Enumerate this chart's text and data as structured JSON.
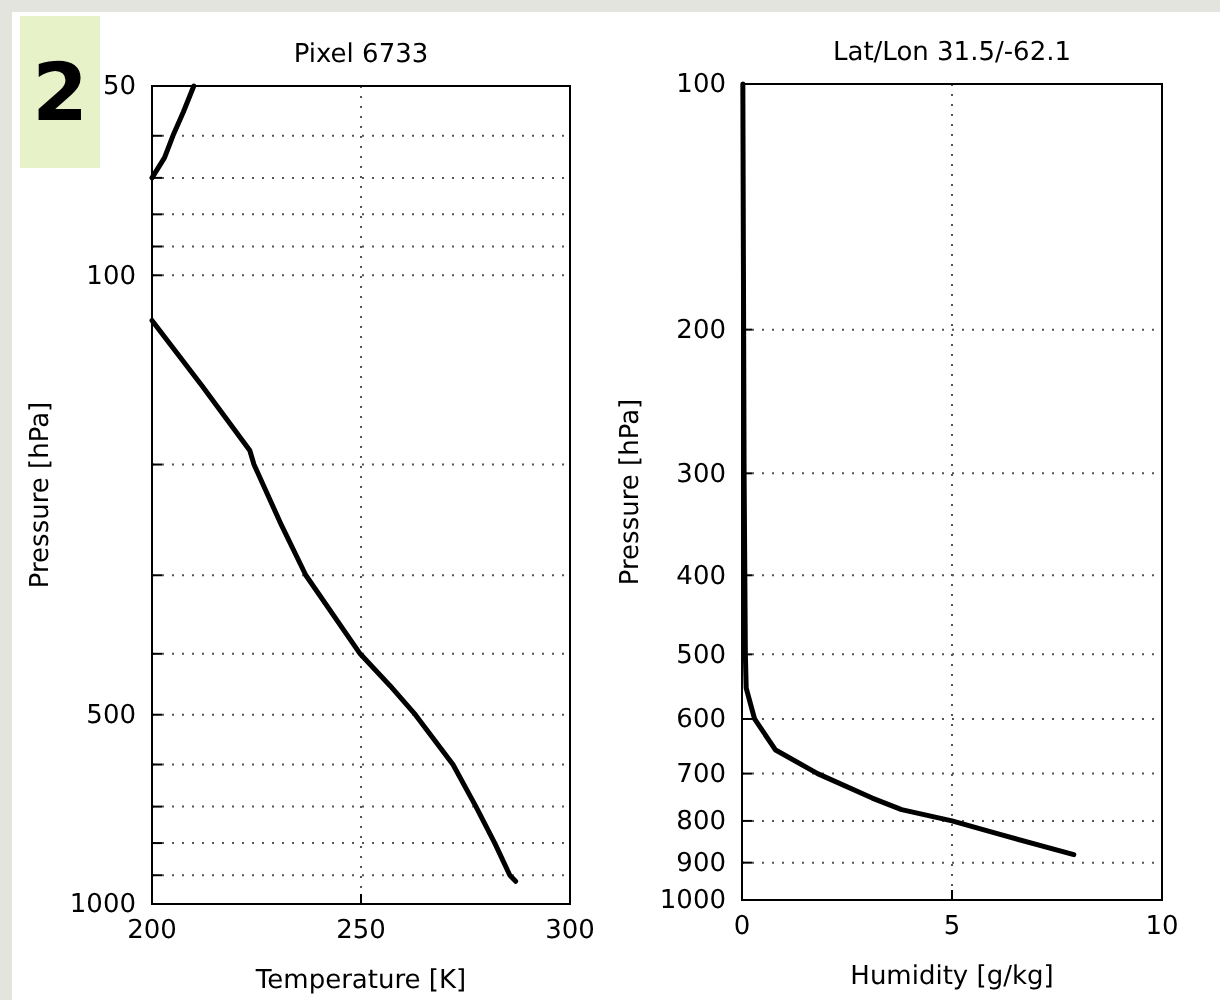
{
  "chart_data": [
    {
      "type": "line",
      "title": "Pixel 6733",
      "xlabel": "Temperature [K]",
      "ylabel": "Pressure [hPa]",
      "annotations": [
        "2"
      ],
      "series": [
        {
          "color": "#000000",
          "x": [
            210,
            207.5,
            205,
            203,
            200,
            null,
            200,
            212,
            223.4,
            224.4,
            231,
            236.8,
            249.8,
            257,
            263,
            272,
            277.5,
            282,
            285.6,
            287
          ],
          "values": [
            50,
            55,
            60,
            65,
            70,
            null,
            118,
            150,
            190,
            200,
            250,
            300,
            400,
            450,
            500,
            600,
            700,
            800,
            900,
            920
          ]
        }
      ],
      "xlim": [
        200,
        300
      ],
      "xticks": [
        200,
        250,
        300
      ],
      "ylim": [
        1000,
        50
      ],
      "log": "y",
      "yticks": [
        50,
        {
          "value": 60,
          "label": null
        },
        {
          "value": 70,
          "label": null
        },
        {
          "value": 80,
          "label": null
        },
        {
          "value": 90,
          "label": null
        },
        100,
        {
          "value": 200,
          "label": null
        },
        {
          "value": 300,
          "label": null
        },
        {
          "value": 400,
          "label": null
        },
        500,
        {
          "value": 600,
          "label": null
        },
        {
          "value": 700,
          "label": null
        },
        {
          "value": 800,
          "label": null
        },
        {
          "value": 900,
          "label": null
        },
        1000
      ],
      "grid": true,
      "line_style": "solid"
    },
    {
      "type": "line",
      "title": "Lat/Lon 31.5/-62.1",
      "xlabel": "Humidity [g/kg]",
      "ylabel": "Pressure [hPa]",
      "series": [
        {
          "color": "#000000",
          "x": [
            0.02,
            0.05,
            0.08,
            0.1,
            0.3,
            0.8,
            1.8,
            3.1,
            3.8,
            5.0,
            6.1,
            7.9
          ],
          "values": [
            100,
            300,
            500,
            550,
            600,
            655,
            700,
            750,
            775,
            800,
            830,
            880
          ]
        }
      ],
      "xlim": [
        0,
        10
      ],
      "xticks": [
        0,
        5,
        10
      ],
      "ylim": [
        1000,
        100
      ],
      "log": "y",
      "yticks": [
        100,
        200,
        300,
        400,
        500,
        600,
        700,
        800,
        900,
        1000
      ],
      "grid": true,
      "line_style": "solid"
    }
  ]
}
